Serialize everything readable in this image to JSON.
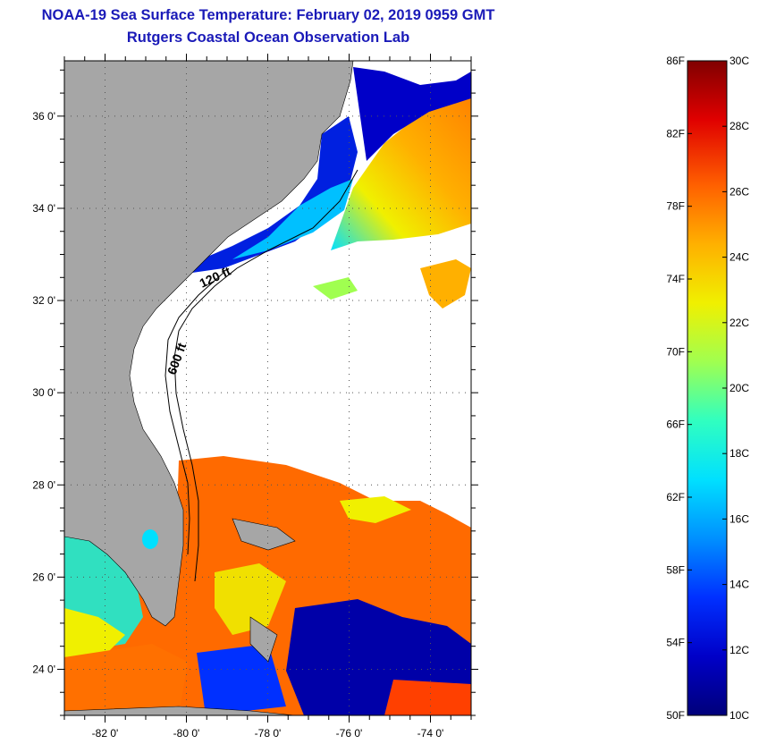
{
  "title": {
    "line1": "NOAA-19 Sea Surface Temperature:  February 02, 2019 0959 GMT",
    "line2": "Rutgers Coastal Ocean Observation Lab"
  },
  "map": {
    "lat_labels": [
      "36 0'",
      "34 0'",
      "32 0'",
      "30 0'",
      "28 0'",
      "26 0'",
      "24 0'"
    ],
    "lat_values": [
      36,
      34,
      32,
      30,
      28,
      26,
      24
    ],
    "lon_labels": [
      "-82 0'",
      "-80 0'",
      "-78 0'",
      "-76 0'",
      "-74 0'"
    ],
    "lon_values": [
      -82,
      -80,
      -78,
      -76,
      -74
    ],
    "lat_range": [
      23,
      37.2
    ],
    "lon_range": [
      -83,
      -73
    ],
    "isobath_labels": [
      "120 ft",
      "600 ft"
    ],
    "land_color": "#a6a6a6",
    "cloud_color": "#ffffff"
  },
  "colorbar": {
    "fahrenheit_labels": [
      "86F",
      "82F",
      "78F",
      "74F",
      "70F",
      "66F",
      "62F",
      "58F",
      "54F",
      "50F"
    ],
    "celsius_labels": [
      "30C",
      "28C",
      "26C",
      "24C",
      "22C",
      "20C",
      "18C",
      "16C",
      "14C",
      "12C",
      "10C"
    ],
    "range_celsius": [
      10,
      30
    ],
    "colors": [
      "#00007a",
      "#0000c8",
      "#0030ff",
      "#0090ff",
      "#00e0ff",
      "#30ffc0",
      "#a0ff50",
      "#f0f000",
      "#ffb000",
      "#ff6000",
      "#e00000",
      "#800000"
    ]
  }
}
